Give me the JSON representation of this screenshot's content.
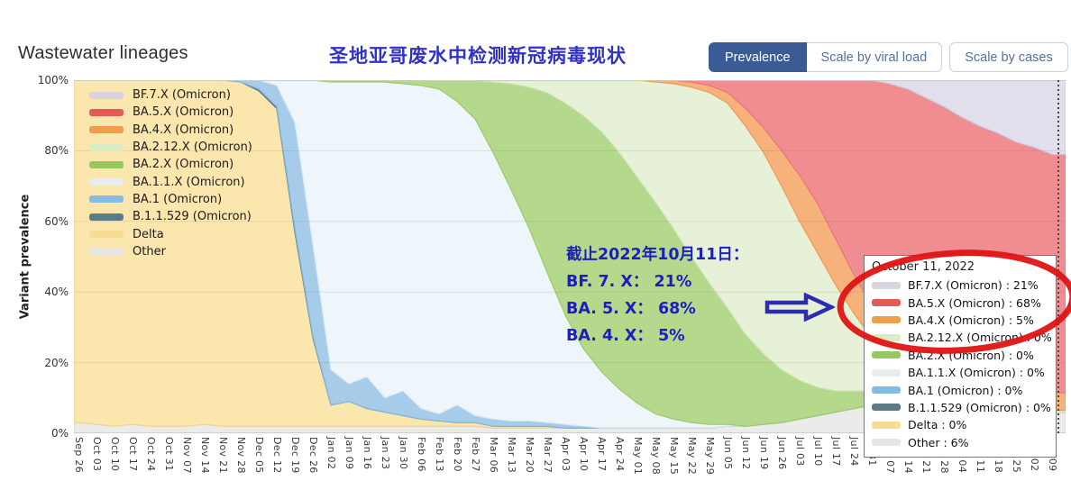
{
  "header": {
    "title": "Wastewater lineages",
    "subtitle_cn": "圣地亚哥废水中检测新冠病毒现状",
    "buttons": [
      {
        "label": "Prevalence",
        "selected": true
      },
      {
        "label": "Scale by viral load",
        "selected": false
      },
      {
        "label": "Scale by cases",
        "selected": false
      }
    ]
  },
  "colors": {
    "accent_blue": "#3b5b94",
    "annotation_blue": "#1d1dc0",
    "ellipse_red": "#e01313",
    "crosshair": "#444444"
  },
  "legend": {
    "items": [
      {
        "label": "BF.7.X (Omicron)",
        "color": "#d8d4de"
      },
      {
        "label": "BA.5.X (Omicron)",
        "color": "#e25c55"
      },
      {
        "label": "BA.4.X (Omicron)",
        "color": "#f29d4b"
      },
      {
        "label": "BA.2.12.X (Omicron)",
        "color": "#d9ecc3"
      },
      {
        "label": "BA.2.X (Omicron)",
        "color": "#97c75f"
      },
      {
        "label": "BA.1.1.X (Omicron)",
        "color": "#e7edec"
      },
      {
        "label": "BA.1 (Omicron)",
        "color": "#83bcdf"
      },
      {
        "label": "B.1.1.529 (Omicron)",
        "color": "#5d7a87"
      },
      {
        "label": "Delta",
        "color": "#f8dc92"
      },
      {
        "label": "Other",
        "color": "#e6e6e4"
      }
    ]
  },
  "annotation": {
    "lines": [
      "截止2022年10月11日：",
      "BF. 7. X：  21%",
      "BA. 5. X：  68%",
      "BA. 4. X：  5%"
    ]
  },
  "tooltip": {
    "title": "October 11, 2022",
    "rows": [
      {
        "label": "BF.7.X (Omicron) : 21%",
        "color": "#d8d4de"
      },
      {
        "label": "BA.5.X (Omicron) : 68%",
        "color": "#e25c55"
      },
      {
        "label": "BA.4.X (Omicron) : 5%",
        "color": "#f29d4b"
      },
      {
        "label": "BA.2.12.X (Omicron) : 0%",
        "color": "#d9ecc3"
      },
      {
        "label": "BA.2.X (Omicron) : 0%",
        "color": "#97c75f"
      },
      {
        "label": "BA.1.1.X (Omicron) : 0%",
        "color": "#e7edec"
      },
      {
        "label": "BA.1 (Omicron) : 0%",
        "color": "#83bcdf"
      },
      {
        "label": "B.1.1.529 (Omicron) : 0%",
        "color": "#5d7a87"
      },
      {
        "label": "Delta : 0%",
        "color": "#f8dc92"
      },
      {
        "label": "Other : 6%",
        "color": "#e6e6e4"
      }
    ]
  },
  "chart_data": {
    "type": "area",
    "stacked": true,
    "title": "Wastewater lineages",
    "xlabel": "",
    "ylabel": "Variant prevalence",
    "ylim": [
      0,
      100
    ],
    "y_ticks": [
      "0%",
      "20%",
      "40%",
      "60%",
      "80%",
      "100%"
    ],
    "grid": true,
    "legend_position": "top-left-inside",
    "crosshair_date": "October 11, 2022",
    "categories": [
      "Sep 26",
      "Oct 03",
      "Oct 10",
      "Oct 17",
      "Oct 24",
      "Oct 31",
      "Nov 07",
      "Nov 14",
      "Nov 21",
      "Nov 28",
      "Dec 05",
      "Dec 12",
      "Dec 19",
      "Dec 26",
      "Jan 02",
      "Jan 09",
      "Jan 16",
      "Jan 23",
      "Jan 30",
      "Feb 06",
      "Feb 13",
      "Feb 20",
      "Feb 27",
      "Mar 06",
      "Mar 13",
      "Mar 20",
      "Mar 27",
      "Apr 03",
      "Apr 10",
      "Apr 17",
      "Apr 24",
      "May 01",
      "May 08",
      "May 15",
      "May 22",
      "May 29",
      "Jun 05",
      "Jun 12",
      "Jun 19",
      "Jun 26",
      "Jul 03",
      "Jul 10",
      "Jul 17",
      "Jul 24",
      "Jul 31",
      "Aug 07",
      "Aug 14",
      "Aug 21",
      "Aug 28",
      "Sep 04",
      "Sep 11",
      "Sep 18",
      "Sep 25",
      "Oct 02",
      "Oct 09"
    ],
    "series": [
      {
        "name": "Other",
        "fill": "#ebebe9",
        "stroke": "#d7d7d2",
        "values": [
          3,
          2.5,
          2,
          2.5,
          2,
          2,
          2,
          2.5,
          2,
          2,
          2,
          2,
          2,
          2,
          2,
          2,
          2,
          2,
          2,
          2,
          2,
          2,
          2,
          1.5,
          1.5,
          1.5,
          1.5,
          1.5,
          1.5,
          1.5,
          1.5,
          1.5,
          1.5,
          1.5,
          1.5,
          1.5,
          2,
          2,
          2.5,
          3,
          4,
          5,
          6,
          7,
          8,
          9,
          10,
          10,
          9,
          9,
          8,
          8,
          7,
          6.5,
          6
        ]
      },
      {
        "name": "Delta",
        "fill": "#fbe6ae",
        "stroke": "#eed390",
        "values": [
          97,
          97.5,
          98,
          97.5,
          98,
          98,
          98,
          97.5,
          98,
          97.5,
          95,
          90,
          55,
          25,
          6,
          7,
          5,
          4,
          3,
          2,
          1.5,
          1,
          1,
          0.5,
          0.5,
          0.5,
          0.5,
          0,
          0,
          0,
          0,
          0,
          0,
          0,
          0,
          0,
          0,
          0,
          0,
          0,
          0,
          0,
          0,
          0,
          0,
          0,
          0,
          0,
          0,
          0,
          0,
          0,
          0,
          0,
          0
        ]
      },
      {
        "name": "B.1.1.529",
        "fill": "#7a919b",
        "stroke": "#5d7a87",
        "values": [
          0,
          0,
          0,
          0,
          0,
          0,
          0,
          0,
          0,
          0,
          0.5,
          0.5,
          1,
          0.5,
          0,
          0,
          0,
          0,
          0,
          0,
          0,
          0,
          0,
          0,
          0,
          0,
          0,
          0,
          0,
          0,
          0,
          0,
          0,
          0,
          0,
          0,
          0,
          0,
          0,
          0,
          0,
          0,
          0,
          0,
          0,
          0,
          0,
          0,
          0,
          0,
          0,
          0,
          0,
          0,
          0
        ]
      },
      {
        "name": "BA.1",
        "fill": "#a6cce9",
        "stroke": "#82b6dc",
        "values": [
          0,
          0,
          0,
          0,
          0,
          0,
          0,
          0,
          0,
          0.5,
          2.5,
          6,
          30,
          26,
          10,
          5,
          9,
          4,
          7,
          3,
          2,
          5,
          2,
          2,
          1.5,
          1.5,
          1,
          1,
          0.5,
          0,
          0,
          0,
          0,
          0,
          0,
          0,
          0,
          0,
          0,
          0,
          0,
          0,
          0,
          0,
          0,
          0,
          0,
          0,
          0,
          0,
          0,
          0,
          0,
          0,
          0
        ]
      },
      {
        "name": "BA.1.1.X",
        "fill": "#eef5fb",
        "stroke": "#d8e7f3",
        "values": [
          0,
          0,
          0,
          0,
          0,
          0,
          0,
          0,
          0,
          0,
          0,
          1.5,
          12,
          46.5,
          81.5,
          85.5,
          83.5,
          89.5,
          87,
          91.5,
          92,
          86,
          84,
          75.5,
          65.5,
          54.5,
          42.5,
          31,
          22,
          16,
          11,
          7,
          4,
          2.5,
          1.5,
          1,
          0.5,
          0,
          0,
          0,
          0,
          0,
          0,
          0,
          0,
          0,
          0,
          0,
          0,
          0,
          0,
          0,
          0,
          0,
          0
        ]
      },
      {
        "name": "BA.2.X",
        "fill": "#b5d98c",
        "stroke": "#9acb66",
        "values": [
          0,
          0,
          0,
          0,
          0,
          0,
          0,
          0,
          0,
          0,
          0,
          0,
          0,
          0,
          0.5,
          0.5,
          0.5,
          0.5,
          1,
          1.5,
          2.5,
          6,
          11,
          20,
          30,
          40,
          51,
          60,
          66,
          68,
          67,
          64,
          60,
          54,
          47,
          40,
          33,
          26,
          20,
          15,
          11,
          8,
          6,
          5,
          4,
          3,
          2.5,
          2,
          2,
          1.5,
          1.5,
          1,
          1,
          0.5,
          0
        ]
      },
      {
        "name": "BA.2.12.X",
        "fill": "#e6f1d7",
        "stroke": "#d2e6ba",
        "values": [
          0,
          0,
          0,
          0,
          0,
          0,
          0,
          0,
          0,
          0,
          0,
          0,
          0,
          0,
          0,
          0,
          0,
          0,
          0,
          0,
          0,
          0,
          0,
          0.5,
          1,
          2,
          3.5,
          6.5,
          10,
          14.5,
          20.5,
          27.5,
          34,
          41,
          48,
          54,
          58,
          59,
          57,
          52,
          45,
          38,
          30,
          22,
          15,
          10,
          7,
          5,
          4,
          3,
          2.5,
          2,
          1.5,
          1,
          0.5
        ]
      },
      {
        "name": "BA.4.X",
        "fill": "#f6b27a",
        "stroke": "#f09c50",
        "values": [
          0,
          0,
          0,
          0,
          0,
          0,
          0,
          0,
          0,
          0,
          0,
          0,
          0,
          0,
          0,
          0,
          0,
          0,
          0,
          0,
          0,
          0,
          0,
          0,
          0,
          0,
          0,
          0,
          0,
          0,
          0,
          0,
          0.5,
          1,
          1.5,
          2,
          3,
          5,
          7,
          10,
          13,
          14,
          13,
          11,
          9,
          7,
          5,
          4,
          3.5,
          3,
          3,
          3,
          4,
          4.5,
          5
        ]
      },
      {
        "name": "BA.5.X",
        "fill": "#f08d91",
        "stroke": "#e8767c",
        "values": [
          0,
          0,
          0,
          0,
          0,
          0,
          0,
          0,
          0,
          0,
          0,
          0,
          0,
          0,
          0,
          0,
          0,
          0,
          0,
          0,
          0,
          0,
          0,
          0,
          0,
          0,
          0,
          0,
          0,
          0,
          0,
          0,
          0,
          0,
          0.5,
          1.5,
          3.5,
          8,
          13.5,
          20,
          27,
          35,
          45,
          55,
          64,
          70,
          73,
          74,
          74,
          73,
          72,
          71,
          69,
          68.5,
          67.5
        ]
      },
      {
        "name": "BF.7.X",
        "fill": "#e1dfec",
        "stroke": "#cdc9dd",
        "values": [
          0,
          0,
          0,
          0,
          0,
          0,
          0,
          0,
          0,
          0,
          0,
          0,
          0,
          0,
          0,
          0,
          0,
          0,
          0,
          0,
          0,
          0,
          0,
          0,
          0,
          0,
          0,
          0,
          0,
          0,
          0,
          0,
          0,
          0,
          0,
          0,
          0,
          0,
          0,
          0,
          0,
          0,
          0,
          0,
          0,
          1,
          2.5,
          5,
          7.5,
          10.5,
          13,
          15,
          17.5,
          19,
          21
        ]
      }
    ]
  }
}
